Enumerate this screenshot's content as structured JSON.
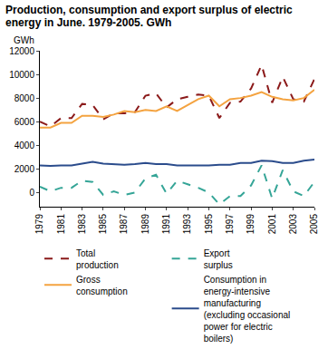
{
  "chart_data": {
    "type": "line",
    "title": "Production, consumption and export surplus of electric energy in June. 1979-2005. GWh",
    "y_label": "GWh",
    "x": [
      1979,
      1980,
      1981,
      1982,
      1983,
      1984,
      1985,
      1986,
      1987,
      1988,
      1989,
      1990,
      1991,
      1992,
      1993,
      1994,
      1995,
      1996,
      1997,
      1998,
      1999,
      2000,
      2001,
      2002,
      2003,
      2004,
      2005
    ],
    "series": [
      {
        "name": "Total production",
        "color": "#8b1a1a",
        "line_style": "dash",
        "values": [
          6000,
          5600,
          6300,
          6300,
          7500,
          7400,
          6200,
          6700,
          6700,
          6800,
          8200,
          8400,
          7200,
          7900,
          8100,
          8300,
          8200,
          6300,
          7600,
          7700,
          8800,
          10800,
          7600,
          9800,
          7900,
          7700,
          9600
        ]
      },
      {
        "name": "Export surplus",
        "color": "#35a597",
        "line_style": "dash",
        "values": [
          500,
          100,
          400,
          400,
          1000,
          900,
          -200,
          100,
          -200,
          0,
          1200,
          1500,
          -100,
          1000,
          700,
          400,
          0,
          -1000,
          -300,
          -300,
          600,
          2300,
          -500,
          1900,
          100,
          -300,
          900
        ]
      },
      {
        "name": "Gross consumption",
        "color": "#f4a340",
        "line_style": "solid",
        "values": [
          5500,
          5500,
          5900,
          5900,
          6500,
          6500,
          6400,
          6600,
          6900,
          6800,
          7000,
          6900,
          7300,
          6900,
          7400,
          7900,
          8200,
          7300,
          7900,
          8000,
          8200,
          8500,
          8100,
          7900,
          7800,
          8000,
          8700
        ]
      },
      {
        "name": "Consumption in energy-intensive manufacturing (excluding occasional power for electric boilers)",
        "color": "#2b4c8c",
        "line_style": "solid",
        "values": [
          2300,
          2250,
          2300,
          2300,
          2450,
          2600,
          2450,
          2400,
          2350,
          2400,
          2500,
          2400,
          2400,
          2300,
          2300,
          2250,
          2300,
          2350,
          2350,
          2500,
          2500,
          2700,
          2650,
          2500,
          2500,
          2700,
          2800
        ]
      }
    ],
    "xlim": [
      1979,
      2005
    ],
    "xticks": [
      1979,
      1981,
      1983,
      1985,
      1987,
      1989,
      1991,
      1993,
      1995,
      1997,
      1999,
      2001,
      2003,
      2005
    ],
    "ylim": [
      -1200,
      12000
    ],
    "yticks": [
      0,
      2000,
      4000,
      6000,
      8000,
      10000,
      12000
    ],
    "grid": false,
    "legend": "bottom"
  }
}
